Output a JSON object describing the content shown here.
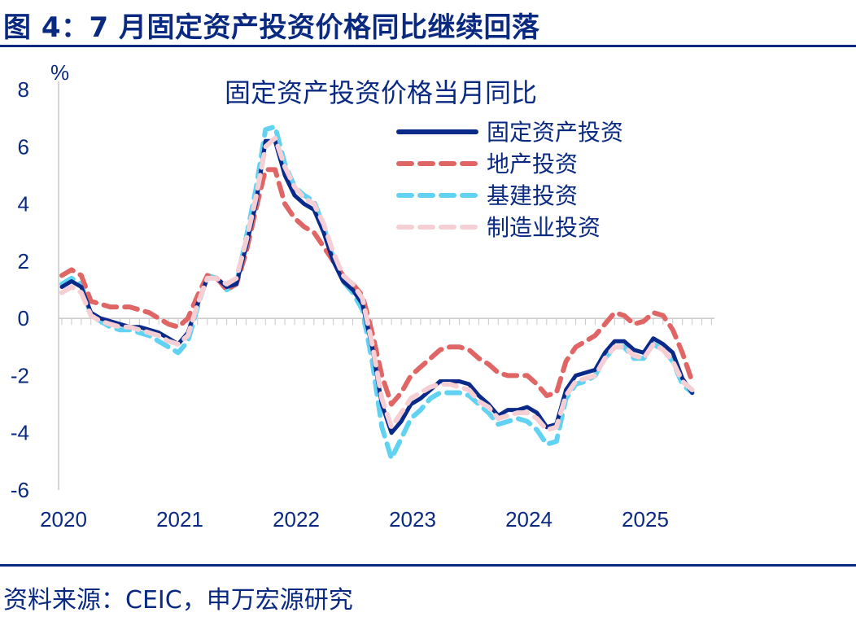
{
  "figure": {
    "title": "图 4：7 月固定资产投资价格同比继续回落",
    "source": "资料来源：CEIC，申万宏源研究"
  },
  "chart_data": {
    "type": "line",
    "title": "固定资产投资价格当月同比",
    "ylabel": "%",
    "xlabel": "",
    "ylim": [
      -6,
      8
    ],
    "yticks": [
      8,
      6,
      4,
      2,
      0,
      -2,
      -4,
      -6
    ],
    "xlim": [
      2020.0,
      2025.583
    ],
    "xticks": [
      "2020",
      "2021",
      "2022",
      "2023",
      "2024",
      "2025"
    ],
    "legend_position": "top-right",
    "series": [
      {
        "name": "固定资产投资",
        "color": "#0a2a8a",
        "style": "solid",
        "points": [
          [
            2020.0,
            1.1
          ],
          [
            2020.083,
            1.3
          ],
          [
            2020.167,
            1.1
          ],
          [
            2020.25,
            0.2
          ],
          [
            2020.333,
            0.0
          ],
          [
            2020.417,
            -0.1
          ],
          [
            2020.5,
            -0.2
          ],
          [
            2020.583,
            -0.3
          ],
          [
            2020.667,
            -0.3
          ],
          [
            2020.75,
            -0.4
          ],
          [
            2020.833,
            -0.5
          ],
          [
            2020.917,
            -0.7
          ],
          [
            2021.0,
            -0.9
          ],
          [
            2021.083,
            -0.5
          ],
          [
            2021.167,
            0.5
          ],
          [
            2021.25,
            1.4
          ],
          [
            2021.333,
            1.4
          ],
          [
            2021.417,
            1.1
          ],
          [
            2021.5,
            1.2
          ],
          [
            2021.583,
            2.5
          ],
          [
            2021.667,
            4.0
          ],
          [
            2021.75,
            6.2
          ],
          [
            2021.833,
            6.2
          ],
          [
            2021.917,
            5.0
          ],
          [
            2022.0,
            4.3
          ],
          [
            2022.083,
            4.0
          ],
          [
            2022.167,
            3.8
          ],
          [
            2022.25,
            3.0
          ],
          [
            2022.333,
            2.0
          ],
          [
            2022.417,
            1.3
          ],
          [
            2022.5,
            1.0
          ],
          [
            2022.583,
            0.5
          ],
          [
            2022.667,
            -1.0
          ],
          [
            2022.75,
            -3.0
          ],
          [
            2022.833,
            -4.0
          ],
          [
            2022.917,
            -3.6
          ],
          [
            2023.0,
            -3.0
          ],
          [
            2023.083,
            -2.8
          ],
          [
            2023.167,
            -2.5
          ],
          [
            2023.25,
            -2.2
          ],
          [
            2023.333,
            -2.2
          ],
          [
            2023.417,
            -2.2
          ],
          [
            2023.5,
            -2.3
          ],
          [
            2023.583,
            -2.7
          ],
          [
            2023.667,
            -3.0
          ],
          [
            2023.75,
            -3.4
          ],
          [
            2023.833,
            -3.2
          ],
          [
            2023.917,
            -3.2
          ],
          [
            2024.0,
            -3.1
          ],
          [
            2024.083,
            -3.3
          ],
          [
            2024.167,
            -3.8
          ],
          [
            2024.25,
            -3.7
          ],
          [
            2024.333,
            -2.5
          ],
          [
            2024.417,
            -2.0
          ],
          [
            2024.5,
            -1.9
          ],
          [
            2024.583,
            -1.8
          ],
          [
            2024.667,
            -1.2
          ],
          [
            2024.75,
            -0.8
          ],
          [
            2024.833,
            -0.8
          ],
          [
            2024.917,
            -1.1
          ],
          [
            2025.0,
            -1.2
          ],
          [
            2025.083,
            -0.7
          ],
          [
            2025.167,
            -0.9
          ],
          [
            2025.25,
            -1.2
          ],
          [
            2025.333,
            -2.1
          ],
          [
            2025.417,
            -2.6
          ]
        ]
      },
      {
        "name": "地产投资",
        "color": "#e06666",
        "style": "dashed",
        "points": [
          [
            2020.0,
            1.5
          ],
          [
            2020.083,
            1.7
          ],
          [
            2020.167,
            1.5
          ],
          [
            2020.25,
            0.6
          ],
          [
            2020.333,
            0.5
          ],
          [
            2020.417,
            0.4
          ],
          [
            2020.5,
            0.4
          ],
          [
            2020.583,
            0.4
          ],
          [
            2020.667,
            0.3
          ],
          [
            2020.75,
            0.2
          ],
          [
            2020.833,
            0.0
          ],
          [
            2020.917,
            -0.2
          ],
          [
            2021.0,
            -0.3
          ],
          [
            2021.083,
            0.0
          ],
          [
            2021.167,
            0.8
          ],
          [
            2021.25,
            1.5
          ],
          [
            2021.333,
            1.4
          ],
          [
            2021.417,
            1.0
          ],
          [
            2021.5,
            1.2
          ],
          [
            2021.583,
            2.3
          ],
          [
            2021.667,
            3.8
          ],
          [
            2021.75,
            5.2
          ],
          [
            2021.833,
            5.2
          ],
          [
            2021.917,
            4.0
          ],
          [
            2022.0,
            3.5
          ],
          [
            2022.083,
            3.2
          ],
          [
            2022.167,
            3.0
          ],
          [
            2022.25,
            2.5
          ],
          [
            2022.333,
            2.0
          ],
          [
            2022.417,
            1.5
          ],
          [
            2022.5,
            1.2
          ],
          [
            2022.583,
            0.8
          ],
          [
            2022.667,
            -0.5
          ],
          [
            2022.75,
            -2.0
          ],
          [
            2022.833,
            -3.0
          ],
          [
            2022.917,
            -2.6
          ],
          [
            2023.0,
            -2.0
          ],
          [
            2023.083,
            -1.7
          ],
          [
            2023.167,
            -1.4
          ],
          [
            2023.25,
            -1.1
          ],
          [
            2023.333,
            -1.0
          ],
          [
            2023.417,
            -1.0
          ],
          [
            2023.5,
            -1.1
          ],
          [
            2023.583,
            -1.4
          ],
          [
            2023.667,
            -1.6
          ],
          [
            2023.75,
            -1.9
          ],
          [
            2023.833,
            -2.0
          ],
          [
            2023.917,
            -2.0
          ],
          [
            2024.0,
            -2.0
          ],
          [
            2024.083,
            -2.3
          ],
          [
            2024.167,
            -2.7
          ],
          [
            2024.25,
            -2.6
          ],
          [
            2024.333,
            -1.5
          ],
          [
            2024.417,
            -1.0
          ],
          [
            2024.5,
            -0.8
          ],
          [
            2024.583,
            -0.6
          ],
          [
            2024.667,
            -0.2
          ],
          [
            2024.75,
            0.2
          ],
          [
            2024.833,
            0.1
          ],
          [
            2024.917,
            -0.2
          ],
          [
            2025.0,
            -0.1
          ],
          [
            2025.083,
            0.2
          ],
          [
            2025.167,
            0.1
          ],
          [
            2025.25,
            -0.4
          ],
          [
            2025.333,
            -1.2
          ],
          [
            2025.417,
            -2.2
          ]
        ]
      },
      {
        "name": "基建投资",
        "color": "#62d2f2",
        "style": "dashed",
        "points": [
          [
            2020.0,
            1.2
          ],
          [
            2020.083,
            1.4
          ],
          [
            2020.167,
            1.2
          ],
          [
            2020.25,
            0.1
          ],
          [
            2020.333,
            -0.1
          ],
          [
            2020.417,
            -0.3
          ],
          [
            2020.5,
            -0.4
          ],
          [
            2020.583,
            -0.4
          ],
          [
            2020.667,
            -0.5
          ],
          [
            2020.75,
            -0.6
          ],
          [
            2020.833,
            -0.8
          ],
          [
            2020.917,
            -1.0
          ],
          [
            2021.0,
            -1.2
          ],
          [
            2021.083,
            -0.8
          ],
          [
            2021.167,
            0.4
          ],
          [
            2021.25,
            1.5
          ],
          [
            2021.333,
            1.4
          ],
          [
            2021.417,
            1.0
          ],
          [
            2021.5,
            1.2
          ],
          [
            2021.583,
            2.8
          ],
          [
            2021.667,
            4.5
          ],
          [
            2021.75,
            6.6
          ],
          [
            2021.833,
            6.7
          ],
          [
            2021.917,
            5.4
          ],
          [
            2022.0,
            4.6
          ],
          [
            2022.083,
            4.3
          ],
          [
            2022.167,
            4.1
          ],
          [
            2022.25,
            3.2
          ],
          [
            2022.333,
            2.1
          ],
          [
            2022.417,
            1.3
          ],
          [
            2022.5,
            0.9
          ],
          [
            2022.583,
            0.3
          ],
          [
            2022.667,
            -1.5
          ],
          [
            2022.75,
            -3.8
          ],
          [
            2022.833,
            -4.9
          ],
          [
            2022.917,
            -4.2
          ],
          [
            2023.0,
            -3.5
          ],
          [
            2023.083,
            -3.2
          ],
          [
            2023.167,
            -2.8
          ],
          [
            2023.25,
            -2.6
          ],
          [
            2023.333,
            -2.6
          ],
          [
            2023.417,
            -2.6
          ],
          [
            2023.5,
            -2.7
          ],
          [
            2023.583,
            -3.0
          ],
          [
            2023.667,
            -3.3
          ],
          [
            2023.75,
            -3.7
          ],
          [
            2023.833,
            -3.6
          ],
          [
            2023.917,
            -3.5
          ],
          [
            2024.0,
            -3.6
          ],
          [
            2024.083,
            -3.9
          ],
          [
            2024.167,
            -4.4
          ],
          [
            2024.25,
            -4.3
          ],
          [
            2024.333,
            -2.8
          ],
          [
            2024.417,
            -2.3
          ],
          [
            2024.5,
            -2.2
          ],
          [
            2024.583,
            -2.0
          ],
          [
            2024.667,
            -1.4
          ],
          [
            2024.75,
            -1.0
          ],
          [
            2024.833,
            -1.0
          ],
          [
            2024.917,
            -1.4
          ],
          [
            2025.0,
            -1.4
          ],
          [
            2025.083,
            -0.9
          ],
          [
            2025.167,
            -1.1
          ],
          [
            2025.25,
            -1.5
          ],
          [
            2025.333,
            -2.3
          ],
          [
            2025.417,
            -2.6
          ]
        ]
      },
      {
        "name": "制造业投资",
        "color": "#f5cfd3",
        "style": "dashed",
        "points": [
          [
            2020.0,
            0.9
          ],
          [
            2020.083,
            1.1
          ],
          [
            2020.167,
            0.9
          ],
          [
            2020.25,
            0.1
          ],
          [
            2020.333,
            -0.1
          ],
          [
            2020.417,
            -0.2
          ],
          [
            2020.5,
            -0.3
          ],
          [
            2020.583,
            -0.3
          ],
          [
            2020.667,
            -0.4
          ],
          [
            2020.75,
            -0.5
          ],
          [
            2020.833,
            -0.6
          ],
          [
            2020.917,
            -0.8
          ],
          [
            2021.0,
            -0.9
          ],
          [
            2021.083,
            -0.6
          ],
          [
            2021.167,
            0.5
          ],
          [
            2021.25,
            1.4
          ],
          [
            2021.333,
            1.4
          ],
          [
            2021.417,
            1.2
          ],
          [
            2021.5,
            1.4
          ],
          [
            2021.583,
            2.7
          ],
          [
            2021.667,
            4.2
          ],
          [
            2021.75,
            6.0
          ],
          [
            2021.833,
            6.3
          ],
          [
            2021.917,
            5.3
          ],
          [
            2022.0,
            4.6
          ],
          [
            2022.083,
            4.2
          ],
          [
            2022.167,
            4.0
          ],
          [
            2022.25,
            3.3
          ],
          [
            2022.333,
            2.3
          ],
          [
            2022.417,
            1.5
          ],
          [
            2022.5,
            1.2
          ],
          [
            2022.583,
            0.7
          ],
          [
            2022.667,
            -0.9
          ],
          [
            2022.75,
            -2.8
          ],
          [
            2022.833,
            -3.8
          ],
          [
            2022.917,
            -3.3
          ],
          [
            2023.0,
            -2.8
          ],
          [
            2023.083,
            -2.6
          ],
          [
            2023.167,
            -2.4
          ],
          [
            2023.25,
            -2.3
          ],
          [
            2023.333,
            -2.3
          ],
          [
            2023.417,
            -2.4
          ],
          [
            2023.5,
            -2.5
          ],
          [
            2023.583,
            -2.9
          ],
          [
            2023.667,
            -3.1
          ],
          [
            2023.75,
            -3.5
          ],
          [
            2023.833,
            -3.4
          ],
          [
            2023.917,
            -3.3
          ],
          [
            2024.0,
            -3.3
          ],
          [
            2024.083,
            -3.5
          ],
          [
            2024.167,
            -3.9
          ],
          [
            2024.25,
            -3.8
          ],
          [
            2024.333,
            -2.7
          ],
          [
            2024.417,
            -2.2
          ],
          [
            2024.5,
            -2.1
          ],
          [
            2024.583,
            -2.0
          ],
          [
            2024.667,
            -1.4
          ],
          [
            2024.75,
            -1.0
          ],
          [
            2024.833,
            -1.0
          ],
          [
            2024.917,
            -1.3
          ],
          [
            2025.0,
            -1.4
          ],
          [
            2025.083,
            -0.9
          ],
          [
            2025.167,
            -1.1
          ],
          [
            2025.25,
            -1.5
          ],
          [
            2025.333,
            -2.2
          ],
          [
            2025.417,
            -2.5
          ]
        ]
      }
    ]
  }
}
